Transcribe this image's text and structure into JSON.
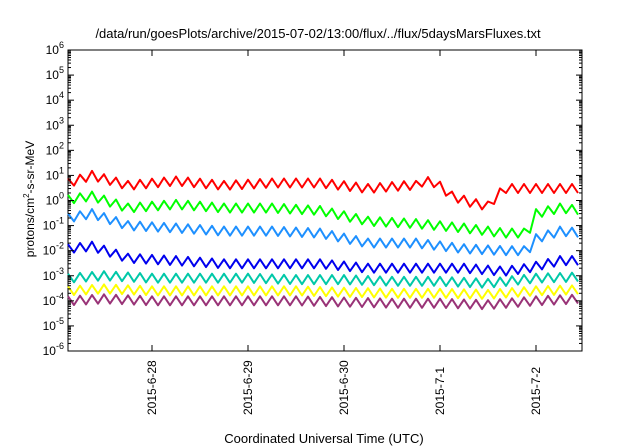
{
  "chart_data": {
    "type": "line",
    "title": "/data/run/goesPlots/archive/2015-07-02/13:00/flux/../flux/5daysMarsFluxes.txt",
    "xlabel": "Coordinated Universal Time (UTC)",
    "ylabel": {
      "pre": "protons/cm",
      "sup": "2",
      "post": "-s-sr-MeV"
    },
    "y_scale": "log",
    "ylim": [
      1e-06,
      1000000.0
    ],
    "xlim": [
      "2015-06-27T03:00",
      "2015-07-02T11:30"
    ],
    "y_ticks": [
      {
        "value": 1e-06,
        "base": "10",
        "exp": "-6"
      },
      {
        "value": 1e-05,
        "base": "10",
        "exp": "-5"
      },
      {
        "value": 0.0001,
        "base": "10",
        "exp": "-4"
      },
      {
        "value": 0.001,
        "base": "10",
        "exp": "-3"
      },
      {
        "value": 0.01,
        "base": "10",
        "exp": "-2"
      },
      {
        "value": 0.1,
        "base": "10",
        "exp": "-1"
      },
      {
        "value": 1.0,
        "base": "10",
        "exp": "0"
      },
      {
        "value": 10.0,
        "base": "10",
        "exp": "1"
      },
      {
        "value": 100.0,
        "base": "10",
        "exp": "2"
      },
      {
        "value": 1000.0,
        "base": "10",
        "exp": "3"
      },
      {
        "value": 10000.0,
        "base": "10",
        "exp": "4"
      },
      {
        "value": 100000.0,
        "base": "10",
        "exp": "5"
      },
      {
        "value": 1000000.0,
        "base": "10",
        "exp": "6"
      }
    ],
    "x_ticks": [
      {
        "date": "2015-06-28T00:00",
        "label": "2015-6-28"
      },
      {
        "date": "2015-06-29T00:00",
        "label": "2015-6-29"
      },
      {
        "date": "2015-06-30T00:00",
        "label": "2015-6-30"
      },
      {
        "date": "2015-07-01T00:00",
        "label": "2015-7-1"
      },
      {
        "date": "2015-07-02T00:00",
        "label": "2015-7-2"
      }
    ],
    "grid": false,
    "legend": "none",
    "series": [
      {
        "color": "#ff0000",
        "points": [
          [
            "2015-06-27T03:00",
            5
          ],
          [
            "2015-06-27T09:00",
            10
          ],
          [
            "2015-06-27T18:00",
            4
          ],
          [
            "2015-06-28T06:00",
            6
          ],
          [
            "2015-06-28T18:00",
            4
          ],
          [
            "2015-06-29T06:00",
            5
          ],
          [
            "2015-06-29T18:00",
            5
          ],
          [
            "2015-06-30T06:00",
            3
          ],
          [
            "2015-06-30T16:00",
            4
          ],
          [
            "2015-06-30T18:00",
            4
          ],
          [
            "2015-06-30T20:00",
            6
          ],
          [
            "2015-06-30T23:00",
            5
          ],
          [
            "2015-07-01T03:00",
            1.5
          ],
          [
            "2015-07-01T08:00",
            0.8
          ],
          [
            "2015-07-01T12:00",
            0.6
          ],
          [
            "2015-07-01T16:00",
            3
          ],
          [
            "2015-07-01T23:00",
            3
          ],
          [
            "2015-07-02T06:00",
            3
          ],
          [
            "2015-07-02T11:30",
            3
          ]
        ]
      },
      {
        "color": "#00ff00",
        "points": [
          [
            "2015-06-27T03:00",
            1.1
          ],
          [
            "2015-06-27T09:00",
            1.5
          ],
          [
            "2015-06-27T18:00",
            0.5
          ],
          [
            "2015-06-28T06:00",
            0.7
          ],
          [
            "2015-06-28T18:00",
            0.5
          ],
          [
            "2015-06-29T06:00",
            0.5
          ],
          [
            "2015-06-29T18:00",
            0.4
          ],
          [
            "2015-06-30T06:00",
            0.15
          ],
          [
            "2015-06-30T18:00",
            0.12
          ],
          [
            "2015-07-01T06:00",
            0.08
          ],
          [
            "2015-07-01T16:00",
            0.05
          ],
          [
            "2015-07-01T22:00",
            0.05
          ],
          [
            "2015-07-02T00:00",
            0.3
          ],
          [
            "2015-07-02T06:00",
            0.5
          ],
          [
            "2015-07-02T11:30",
            0.4
          ]
        ]
      },
      {
        "color": "#1e90ff",
        "points": [
          [
            "2015-06-27T03:00",
            0.2
          ],
          [
            "2015-06-27T09:00",
            0.3
          ],
          [
            "2015-06-27T18:00",
            0.1
          ],
          [
            "2015-06-28T06:00",
            0.08
          ],
          [
            "2015-06-28T18:00",
            0.06
          ],
          [
            "2015-06-29T06:00",
            0.06
          ],
          [
            "2015-06-29T18:00",
            0.05
          ],
          [
            "2015-06-30T06:00",
            0.02
          ],
          [
            "2015-06-30T18:00",
            0.02
          ],
          [
            "2015-07-01T06:00",
            0.012
          ],
          [
            "2015-07-01T16:00",
            0.01
          ],
          [
            "2015-07-01T22:00",
            0.01
          ],
          [
            "2015-07-02T00:00",
            0.03
          ],
          [
            "2015-07-02T06:00",
            0.06
          ],
          [
            "2015-07-02T11:30",
            0.05
          ]
        ]
      },
      {
        "color": "#0000ee",
        "points": [
          [
            "2015-06-27T03:00",
            0.012
          ],
          [
            "2015-06-27T09:00",
            0.015
          ],
          [
            "2015-06-27T18:00",
            0.005
          ],
          [
            "2015-06-28T06:00",
            0.004
          ],
          [
            "2015-06-28T18:00",
            0.003
          ],
          [
            "2015-06-29T06:00",
            0.003
          ],
          [
            "2015-06-29T18:00",
            0.003
          ],
          [
            "2015-06-30T06:00",
            0.002
          ],
          [
            "2015-06-30T18:00",
            0.002
          ],
          [
            "2015-07-01T06:00",
            0.002
          ],
          [
            "2015-07-01T16:00",
            0.0015
          ],
          [
            "2015-07-01T22:00",
            0.002
          ],
          [
            "2015-07-02T06:00",
            0.004
          ],
          [
            "2015-07-02T11:30",
            0.004
          ]
        ]
      },
      {
        "color": "#00c8a8",
        "points": [
          [
            "2015-06-27T03:00",
            0.0008
          ],
          [
            "2015-06-27T12:00",
            0.001
          ],
          [
            "2015-06-28T00:00",
            0.0008
          ],
          [
            "2015-06-28T12:00",
            0.0008
          ],
          [
            "2015-06-29T00:00",
            0.0008
          ],
          [
            "2015-06-29T12:00",
            0.0007
          ],
          [
            "2015-06-30T00:00",
            0.0007
          ],
          [
            "2015-06-30T12:00",
            0.0006
          ],
          [
            "2015-07-01T00:00",
            0.0006
          ],
          [
            "2015-07-01T12:00",
            0.0005
          ],
          [
            "2015-07-02T00:00",
            0.0008
          ],
          [
            "2015-07-02T11:30",
            0.0009
          ]
        ]
      },
      {
        "color": "#ffff00",
        "points": [
          [
            "2015-06-27T03:00",
            0.00025
          ],
          [
            "2015-06-27T12:00",
            0.0003
          ],
          [
            "2015-06-28T00:00",
            0.00025
          ],
          [
            "2015-06-28T12:00",
            0.00025
          ],
          [
            "2015-06-29T00:00",
            0.00025
          ],
          [
            "2015-06-29T12:00",
            0.00025
          ],
          [
            "2015-06-30T00:00",
            0.00022
          ],
          [
            "2015-06-30T12:00",
            0.0002
          ],
          [
            "2015-07-01T00:00",
            0.0002
          ],
          [
            "2015-07-01T12:00",
            0.00018
          ],
          [
            "2015-07-02T00:00",
            0.00025
          ],
          [
            "2015-07-02T11:30",
            0.00028
          ]
        ]
      },
      {
        "color": "#993377",
        "points": [
          [
            "2015-06-27T03:00",
            0.0001
          ],
          [
            "2015-06-27T12:00",
            0.00012
          ],
          [
            "2015-06-28T00:00",
            0.0001
          ],
          [
            "2015-06-28T12:00",
            0.0001
          ],
          [
            "2015-06-29T00:00",
            0.0001
          ],
          [
            "2015-06-29T12:00",
            0.0001
          ],
          [
            "2015-06-30T00:00",
            9e-05
          ],
          [
            "2015-06-30T12:00",
            8e-05
          ],
          [
            "2015-07-01T00:00",
            8e-05
          ],
          [
            "2015-07-01T12:00",
            7e-05
          ],
          [
            "2015-07-02T00:00",
            0.0001
          ],
          [
            "2015-07-02T11:30",
            0.00012
          ]
        ]
      }
    ]
  }
}
